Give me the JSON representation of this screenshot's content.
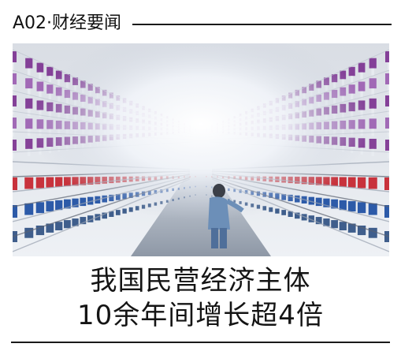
{
  "section": {
    "label": "A02·财经要闻"
  },
  "photo": {
    "subject": "textile-spinning-factory-photo",
    "colors": {
      "bobbin_top": "#7a2f8f",
      "thread_red": "#c8323c",
      "thread_blue": "#2c5aa8",
      "light": "#f4f6fa"
    }
  },
  "headline": {
    "line1": "我国民营经济主体",
    "line2": "10余年间增长超4倍"
  }
}
